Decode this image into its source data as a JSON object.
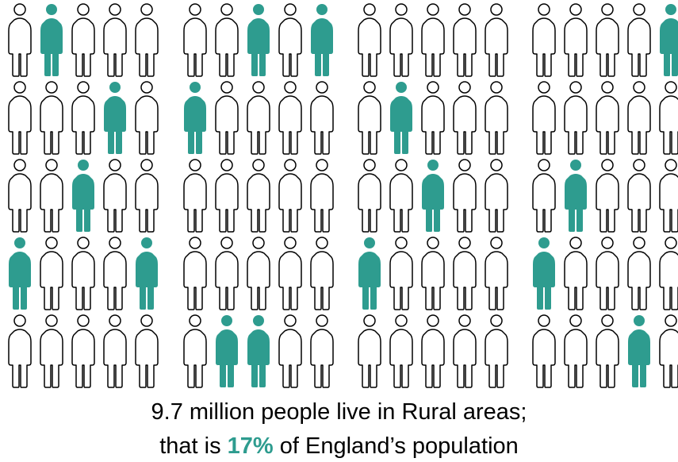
{
  "colors": {
    "highlight": "#2e9c8f",
    "outline": "#000000",
    "background": "#ffffff"
  },
  "icon": "person-icon",
  "grid": {
    "blocks": [
      {
        "rows": [
          [
            0,
            1,
            0,
            0,
            0
          ],
          [
            0,
            0,
            0,
            1,
            0
          ],
          [
            0,
            0,
            1,
            0,
            0
          ],
          [
            1,
            0,
            0,
            0,
            1
          ],
          [
            0,
            0,
            0,
            0,
            0
          ]
        ]
      },
      {
        "rows": [
          [
            0,
            0,
            1,
            0,
            1
          ],
          [
            1,
            0,
            0,
            0,
            0
          ],
          [
            0,
            0,
            0,
            0,
            0
          ],
          [
            0,
            0,
            0,
            0,
            0
          ],
          [
            0,
            1,
            1,
            0,
            0
          ]
        ]
      },
      {
        "rows": [
          [
            0,
            0,
            0,
            0,
            0
          ],
          [
            0,
            1,
            0,
            0,
            0
          ],
          [
            0,
            0,
            1,
            0,
            0
          ],
          [
            1,
            0,
            0,
            0,
            0
          ],
          [
            0,
            0,
            0,
            0,
            0
          ]
        ]
      },
      {
        "rows": [
          [
            0,
            0,
            0,
            0,
            1
          ],
          [
            0,
            0,
            0,
            0,
            0
          ],
          [
            0,
            1,
            0,
            0,
            0
          ],
          [
            1,
            0,
            0,
            0,
            0
          ],
          [
            0,
            0,
            0,
            1,
            0
          ]
        ]
      }
    ]
  },
  "caption": {
    "line1": "9.7 million people live in Rural areas;",
    "line2_prefix": "that is ",
    "line2_highlight": "17%",
    "line2_suffix": " of England’s population"
  }
}
